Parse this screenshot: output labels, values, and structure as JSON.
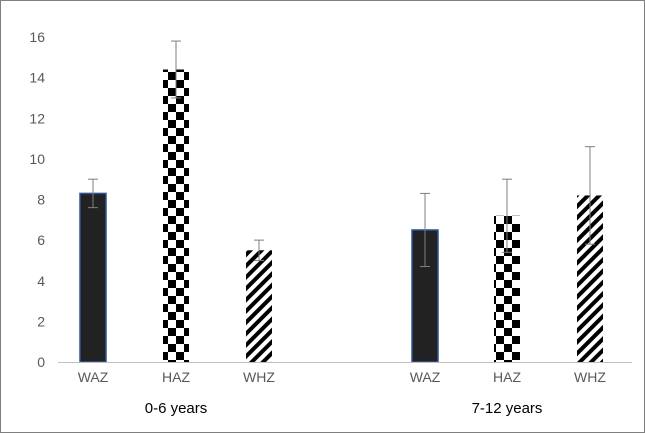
{
  "chart_data": {
    "type": "bar",
    "title": "",
    "xlabel": "",
    "ylabel": "",
    "ylim": [
      0,
      16
    ],
    "yticks": [
      0,
      2,
      4,
      6,
      8,
      10,
      12,
      14,
      16
    ],
    "grid": false,
    "legend": "none",
    "groups": [
      {
        "label": "0-6 years",
        "bars": [
          {
            "category": "WAZ",
            "value": 8.3,
            "error": 0.7,
            "pattern": "solid"
          },
          {
            "category": "HAZ",
            "value": 14.4,
            "error": 1.4,
            "pattern": "checker"
          },
          {
            "category": "WHZ",
            "value": 5.5,
            "error": 0.5,
            "pattern": "diagonal-stripes"
          }
        ]
      },
      {
        "label": "7-12 years",
        "bars": [
          {
            "category": "WAZ",
            "value": 6.5,
            "error": 1.8,
            "pattern": "solid"
          },
          {
            "category": "HAZ",
            "value": 7.2,
            "error": 1.8,
            "pattern": "checker"
          },
          {
            "category": "WHZ",
            "value": 8.2,
            "error": 2.4,
            "pattern": "diagonal-stripes"
          }
        ]
      }
    ],
    "colors": {
      "solid_fill": "#222222",
      "solid_outline": "#2f5597",
      "pattern_dark": "#000000",
      "pattern_light": "#ffffff",
      "axis": "#bfbfbf",
      "tick_text": "#595959",
      "error_bar": "#7f7f7f",
      "border": "#7f7f7f"
    }
  }
}
